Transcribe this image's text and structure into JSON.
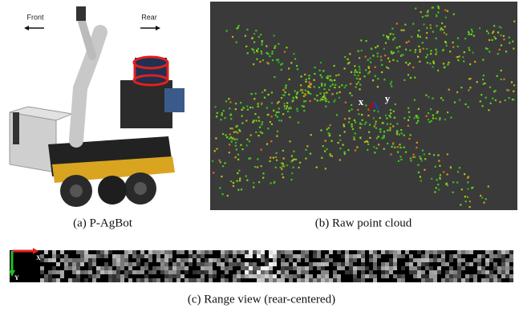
{
  "panels": [
    {
      "caption": "(a) P-AgBot",
      "labels": [
        "Front",
        "Rear"
      ]
    },
    {
      "caption": "(b) Raw point cloud",
      "labels": [
        "x",
        "y"
      ]
    },
    {
      "caption": "(c) Range view (rear-centered)",
      "labels": [
        "X",
        "Y"
      ]
    }
  ]
}
